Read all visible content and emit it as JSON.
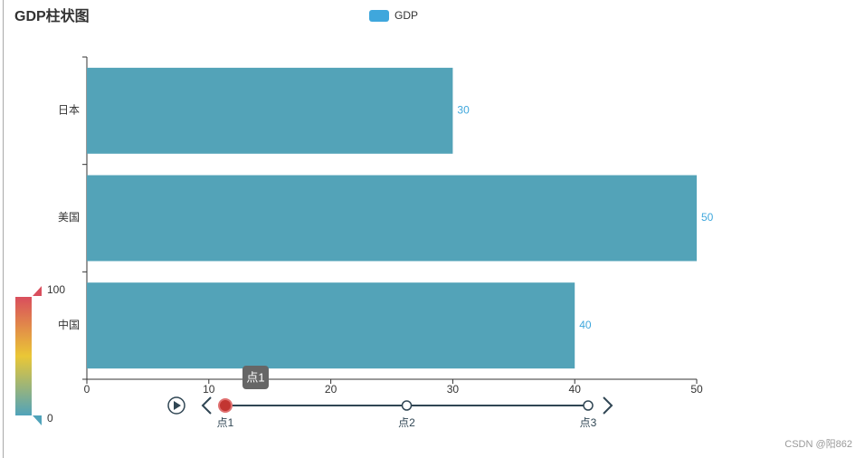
{
  "chart_data": {
    "type": "bar",
    "orientation": "horizontal",
    "title": "GDP柱状图",
    "categories": [
      "中国",
      "美国",
      "日本"
    ],
    "series": [
      {
        "name": "GDP",
        "color": "#53a3b8",
        "values": [
          40,
          50,
          30
        ]
      }
    ],
    "legend_color": "#3fa7dc",
    "label_color": "#3fa7dc",
    "xlim": [
      0,
      50
    ],
    "xticks": [
      0,
      10,
      20,
      30,
      40,
      50
    ],
    "timeline": {
      "labels": [
        "点1",
        "点2",
        "点3"
      ],
      "current": 0
    },
    "visual_map": {
      "range": [
        0,
        100
      ],
      "colors": [
        "#50a3ba",
        "#eac736",
        "#d94e5d"
      ]
    },
    "watermark": "CSDN @阳862"
  }
}
